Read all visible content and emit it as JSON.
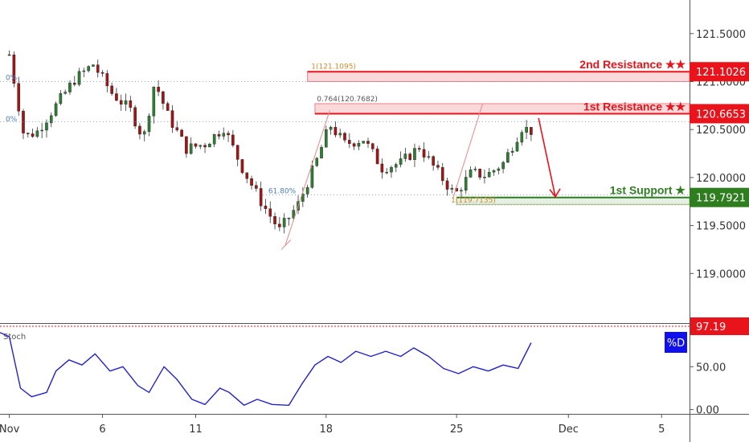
{
  "chart_data": {
    "type": "candlestick",
    "price_axis": {
      "ticks": [
        "121.5000",
        "121.0000",
        "120.5000",
        "120.0000",
        "119.5000",
        "119.0000"
      ],
      "tick_values": [
        121.5,
        121.0,
        120.5,
        120.0,
        119.5,
        119.0
      ],
      "range": [
        118.5,
        121.85
      ]
    },
    "time_axis": {
      "labels": [
        "Nov",
        "6",
        "11",
        "18",
        "25",
        "Dec",
        "5"
      ],
      "day_index": [
        0,
        5,
        10,
        17,
        24,
        30,
        35
      ],
      "range": [
        -0.5,
        36.5
      ]
    },
    "levels": [
      {
        "name": "2nd Resistance",
        "stars": "★★",
        "value": 121.1026,
        "value_label": "121.1026",
        "color": "#e8131b",
        "zone": [
          121.0,
          121.1026
        ]
      },
      {
        "name": "1st Resistance",
        "stars": "★★",
        "value": 120.6653,
        "value_label": "120.6653",
        "color": "#e8131b",
        "zone": [
          120.6653,
          120.77
        ]
      },
      {
        "name": "1st Support",
        "stars": "★",
        "value": 119.7921,
        "value_label": "119.7921",
        "color": "#2e7d1f",
        "zone": [
          119.72,
          119.7921
        ]
      }
    ],
    "fib_annotations": [
      {
        "text": "1(121.1095)",
        "day": 16.2,
        "price": 121.1095,
        "color": "#d08c2a"
      },
      {
        "text": "0.764(120.7682)",
        "day": 16.5,
        "price": 120.7682,
        "color": "#555555"
      },
      {
        "text": "61.80%",
        "day": 13.9,
        "price": 119.81,
        "color": "#4a7fc1"
      },
      {
        "text": "1(119.7135)",
        "day": 23.7,
        "price": 119.7135,
        "color": "#d08c2a"
      },
      {
        "text": "0%",
        "day": -0.2,
        "price": 120.99,
        "color": "#4a7fc1"
      },
      {
        "text": "0%",
        "day": -0.2,
        "price": 120.56,
        "color": "#4a7fc1"
      }
    ],
    "projection": {
      "color": "#e8131b",
      "points": [
        {
          "day": 28.4,
          "price": 120.62
        },
        {
          "day": 29.3,
          "price": 119.8
        }
      ]
    },
    "close_series": [
      {
        "day": 0.0,
        "price": 121.28
      },
      {
        "day": 0.8,
        "price": 120.42
      },
      {
        "day": 1.5,
        "price": 120.48
      },
      {
        "day": 2.5,
        "price": 120.75
      },
      {
        "day": 3.5,
        "price": 121.02
      },
      {
        "day": 4.5,
        "price": 121.18
      },
      {
        "day": 5.5,
        "price": 120.88
      },
      {
        "day": 6.5,
        "price": 120.7
      },
      {
        "day": 7.2,
        "price": 120.4
      },
      {
        "day": 7.8,
        "price": 121.0
      },
      {
        "day": 8.5,
        "price": 120.65
      },
      {
        "day": 9.5,
        "price": 120.3
      },
      {
        "day": 10.5,
        "price": 120.35
      },
      {
        "day": 11.5,
        "price": 120.52
      },
      {
        "day": 12.5,
        "price": 120.1
      },
      {
        "day": 13.5,
        "price": 119.75
      },
      {
        "day": 14.5,
        "price": 119.45
      },
      {
        "day": 15.5,
        "price": 119.72
      },
      {
        "day": 16.5,
        "price": 120.18
      },
      {
        "day": 17.2,
        "price": 120.55
      },
      {
        "day": 18.0,
        "price": 120.35
      },
      {
        "day": 19.0,
        "price": 120.4
      },
      {
        "day": 20.0,
        "price": 120.1
      },
      {
        "day": 21.0,
        "price": 120.15
      },
      {
        "day": 22.0,
        "price": 120.32
      },
      {
        "day": 23.0,
        "price": 120.05
      },
      {
        "day": 23.9,
        "price": 119.82
      },
      {
        "day": 24.8,
        "price": 120.05
      },
      {
        "day": 25.6,
        "price": 120.02
      },
      {
        "day": 26.5,
        "price": 120.15
      },
      {
        "day": 27.5,
        "price": 120.52
      },
      {
        "day": 28.1,
        "price": 120.48
      }
    ],
    "oscillator": {
      "name": "Stoch",
      "label": "%D",
      "label_color": "#1010ee",
      "overbought": 97.19,
      "overbought_label": "97.19",
      "overbought_color": "#e8131b",
      "ticks": [
        "50.00",
        "0.00"
      ],
      "tick_values": [
        50,
        0
      ],
      "range": [
        -5,
        100
      ],
      "line_color": "#2222cc",
      "series": [
        {
          "day": -0.5,
          "value": 90
        },
        {
          "day": 0.0,
          "value": 85
        },
        {
          "day": 0.6,
          "value": 25
        },
        {
          "day": 1.2,
          "value": 15
        },
        {
          "day": 2.0,
          "value": 20
        },
        {
          "day": 2.5,
          "value": 45
        },
        {
          "day": 3.2,
          "value": 58
        },
        {
          "day": 3.9,
          "value": 52
        },
        {
          "day": 4.6,
          "value": 65
        },
        {
          "day": 5.4,
          "value": 45
        },
        {
          "day": 6.1,
          "value": 50
        },
        {
          "day": 6.9,
          "value": 28
        },
        {
          "day": 7.5,
          "value": 20
        },
        {
          "day": 8.3,
          "value": 50
        },
        {
          "day": 9.0,
          "value": 35
        },
        {
          "day": 9.8,
          "value": 12
        },
        {
          "day": 10.5,
          "value": 6
        },
        {
          "day": 11.3,
          "value": 25
        },
        {
          "day": 11.8,
          "value": 20
        },
        {
          "day": 12.6,
          "value": 5
        },
        {
          "day": 13.3,
          "value": 12
        },
        {
          "day": 14.1,
          "value": 6
        },
        {
          "day": 15.0,
          "value": 5
        },
        {
          "day": 15.7,
          "value": 30
        },
        {
          "day": 16.4,
          "value": 52
        },
        {
          "day": 17.1,
          "value": 62
        },
        {
          "day": 17.8,
          "value": 55
        },
        {
          "day": 18.6,
          "value": 68
        },
        {
          "day": 19.4,
          "value": 62
        },
        {
          "day": 20.2,
          "value": 68
        },
        {
          "day": 21.0,
          "value": 62
        },
        {
          "day": 21.7,
          "value": 72
        },
        {
          "day": 22.5,
          "value": 62
        },
        {
          "day": 23.3,
          "value": 48
        },
        {
          "day": 24.1,
          "value": 42
        },
        {
          "day": 24.9,
          "value": 50
        },
        {
          "day": 25.7,
          "value": 45
        },
        {
          "day": 26.5,
          "value": 52
        },
        {
          "day": 27.3,
          "value": 48
        },
        {
          "day": 28.0,
          "value": 78
        }
      ]
    }
  }
}
